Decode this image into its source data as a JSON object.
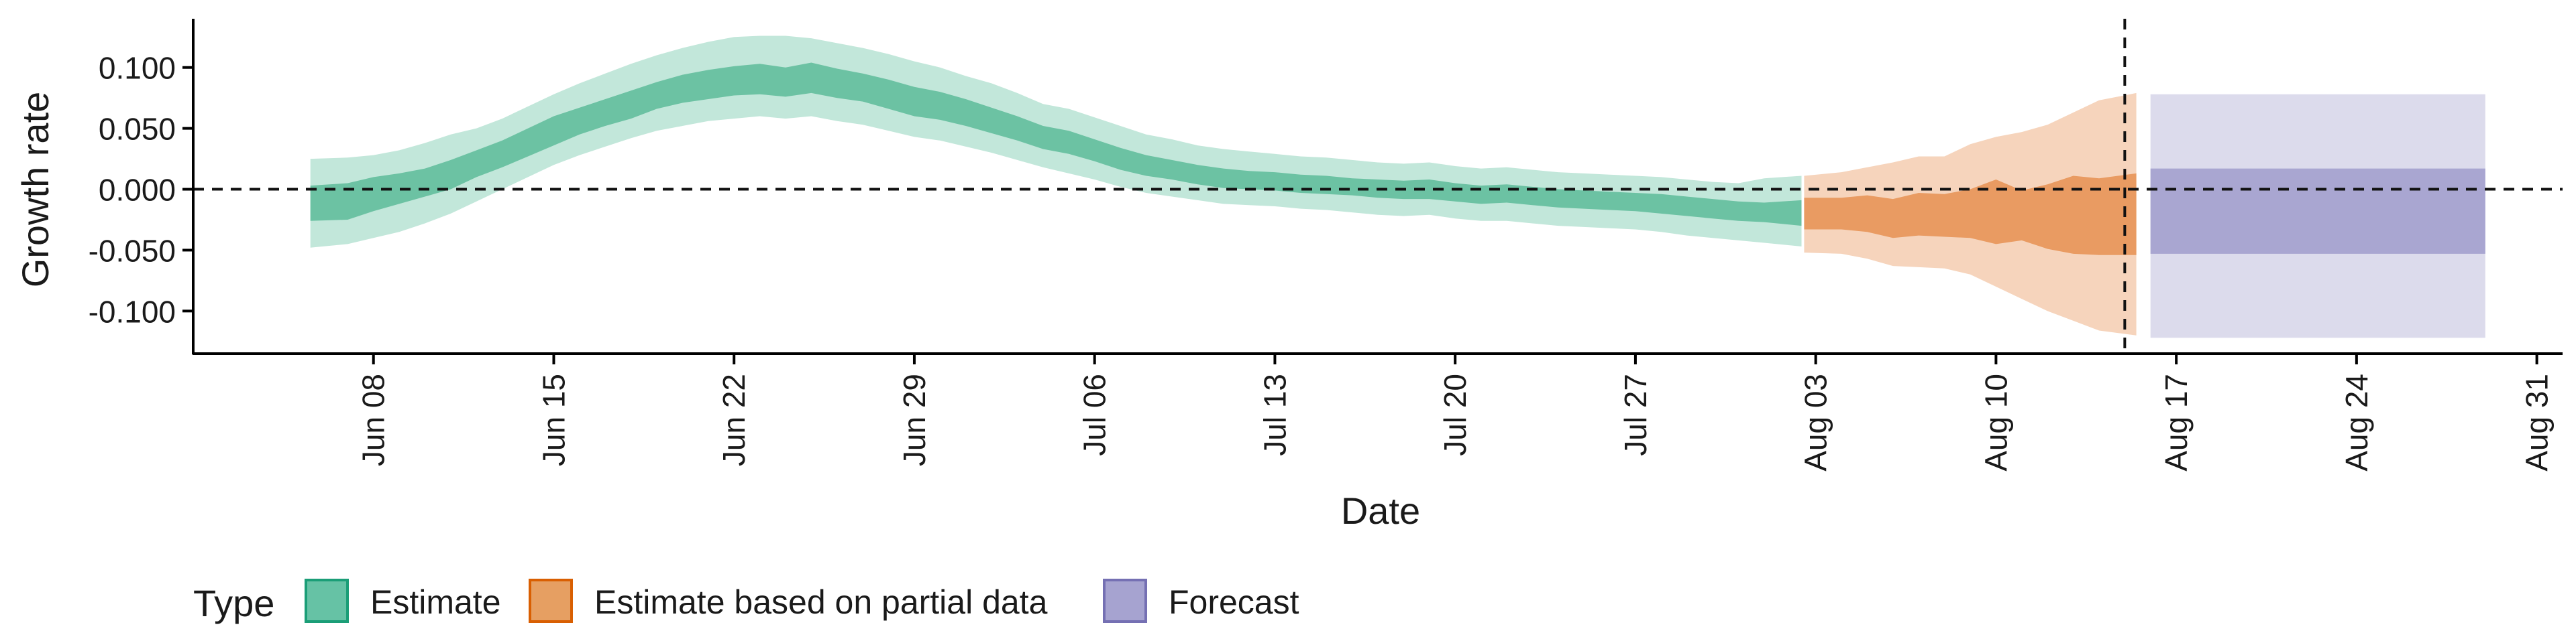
{
  "chart_data": {
    "type": "area",
    "xlabel": "Date",
    "ylabel": "Growth rate",
    "x_range": [
      "2020-06-01",
      "2020-09-01"
    ],
    "ylim": [
      -0.135,
      0.14
    ],
    "y_ticks": [
      {
        "value": 0.1,
        "label": "0.100"
      },
      {
        "value": 0.05,
        "label": "0.050"
      },
      {
        "value": 0.0,
        "label": "0.000"
      },
      {
        "value": -0.05,
        "label": "-0.050"
      },
      {
        "value": -0.1,
        "label": "-0.100"
      }
    ],
    "x_ticks": [
      {
        "date": "2020-06-08",
        "label": "Jun 08"
      },
      {
        "date": "2020-06-15",
        "label": "Jun 15"
      },
      {
        "date": "2020-06-22",
        "label": "Jun 22"
      },
      {
        "date": "2020-06-29",
        "label": "Jun 29"
      },
      {
        "date": "2020-07-06",
        "label": "Jul 06"
      },
      {
        "date": "2020-07-13",
        "label": "Jul 13"
      },
      {
        "date": "2020-07-20",
        "label": "Jul 20"
      },
      {
        "date": "2020-07-27",
        "label": "Jul 27"
      },
      {
        "date": "2020-08-03",
        "label": "Aug 03"
      },
      {
        "date": "2020-08-10",
        "label": "Aug 10"
      },
      {
        "date": "2020-08-17",
        "label": "Aug 17"
      },
      {
        "date": "2020-08-24",
        "label": "Aug 24"
      },
      {
        "date": "2020-08-31",
        "label": "Aug 31"
      }
    ],
    "reference_lines": {
      "horizontal_y": 0.0,
      "vertical_date": "2020-08-15"
    },
    "grid": false,
    "legend": {
      "title": "Type",
      "position": "bottom-left",
      "entries": [
        {
          "label": "Estimate",
          "fill": "#66c2a5",
          "stroke": "#1b9e77"
        },
        {
          "label": "Estimate based on partial data",
          "fill": "#e69f62",
          "stroke": "#d95f02"
        },
        {
          "label": "Forecast",
          "fill": "#a6a3d0",
          "stroke": "#7570b3"
        }
      ]
    },
    "series": [
      {
        "name": "Estimate",
        "inner_color": "#6cc2a3",
        "outer_color": "#c2e7da",
        "points": [
          {
            "date": "2020-06-06",
            "lo90": -0.048,
            "lo50": -0.026,
            "hi50": 0.003,
            "hi90": 0.025
          },
          {
            "date": "2020-06-07",
            "lo90": -0.045,
            "lo50": -0.025,
            "hi50": 0.005,
            "hi90": 0.026
          },
          {
            "date": "2020-06-08",
            "lo90": -0.04,
            "lo50": -0.018,
            "hi50": 0.01,
            "hi90": 0.028
          },
          {
            "date": "2020-06-09",
            "lo90": -0.035,
            "lo50": -0.012,
            "hi50": 0.013,
            "hi90": 0.032
          },
          {
            "date": "2020-06-10",
            "lo90": -0.028,
            "lo50": -0.006,
            "hi50": 0.017,
            "hi90": 0.038
          },
          {
            "date": "2020-06-11",
            "lo90": -0.02,
            "lo50": 0.0,
            "hi50": 0.024,
            "hi90": 0.045
          },
          {
            "date": "2020-06-12",
            "lo90": -0.01,
            "lo50": 0.01,
            "hi50": 0.032,
            "hi90": 0.05
          },
          {
            "date": "2020-06-13",
            "lo90": 0.0,
            "lo50": 0.018,
            "hi50": 0.04,
            "hi90": 0.058
          },
          {
            "date": "2020-06-14",
            "lo90": 0.01,
            "lo50": 0.027,
            "hi50": 0.05,
            "hi90": 0.068
          },
          {
            "date": "2020-06-15",
            "lo90": 0.02,
            "lo50": 0.036,
            "hi50": 0.06,
            "hi90": 0.078
          },
          {
            "date": "2020-06-16",
            "lo90": 0.028,
            "lo50": 0.045,
            "hi50": 0.067,
            "hi90": 0.087
          },
          {
            "date": "2020-06-17",
            "lo90": 0.035,
            "lo50": 0.052,
            "hi50": 0.074,
            "hi90": 0.095
          },
          {
            "date": "2020-06-18",
            "lo90": 0.042,
            "lo50": 0.058,
            "hi50": 0.081,
            "hi90": 0.103
          },
          {
            "date": "2020-06-19",
            "lo90": 0.048,
            "lo50": 0.066,
            "hi50": 0.088,
            "hi90": 0.11
          },
          {
            "date": "2020-06-20",
            "lo90": 0.052,
            "lo50": 0.071,
            "hi50": 0.094,
            "hi90": 0.116
          },
          {
            "date": "2020-06-21",
            "lo90": 0.056,
            "lo50": 0.074,
            "hi50": 0.098,
            "hi90": 0.121
          },
          {
            "date": "2020-06-22",
            "lo90": 0.058,
            "lo50": 0.077,
            "hi50": 0.101,
            "hi90": 0.125
          },
          {
            "date": "2020-06-23",
            "lo90": 0.06,
            "lo50": 0.078,
            "hi50": 0.103,
            "hi90": 0.126
          },
          {
            "date": "2020-06-24",
            "lo90": 0.058,
            "lo50": 0.076,
            "hi50": 0.1,
            "hi90": 0.126
          },
          {
            "date": "2020-06-25",
            "lo90": 0.06,
            "lo50": 0.079,
            "hi50": 0.104,
            "hi90": 0.124
          },
          {
            "date": "2020-06-26",
            "lo90": 0.056,
            "lo50": 0.075,
            "hi50": 0.099,
            "hi90": 0.12
          },
          {
            "date": "2020-06-27",
            "lo90": 0.053,
            "lo50": 0.072,
            "hi50": 0.095,
            "hi90": 0.116
          },
          {
            "date": "2020-06-28",
            "lo90": 0.048,
            "lo50": 0.066,
            "hi50": 0.09,
            "hi90": 0.111
          },
          {
            "date": "2020-06-29",
            "lo90": 0.043,
            "lo50": 0.06,
            "hi50": 0.084,
            "hi90": 0.105
          },
          {
            "date": "2020-06-30",
            "lo90": 0.04,
            "lo50": 0.057,
            "hi50": 0.08,
            "hi90": 0.1
          },
          {
            "date": "2020-07-01",
            "lo90": 0.035,
            "lo50": 0.052,
            "hi50": 0.074,
            "hi90": 0.093
          },
          {
            "date": "2020-07-02",
            "lo90": 0.03,
            "lo50": 0.046,
            "hi50": 0.067,
            "hi90": 0.087
          },
          {
            "date": "2020-07-03",
            "lo90": 0.024,
            "lo50": 0.04,
            "hi50": 0.06,
            "hi90": 0.079
          },
          {
            "date": "2020-07-04",
            "lo90": 0.018,
            "lo50": 0.033,
            "hi50": 0.052,
            "hi90": 0.07
          },
          {
            "date": "2020-07-05",
            "lo90": 0.013,
            "lo50": 0.029,
            "hi50": 0.048,
            "hi90": 0.066
          },
          {
            "date": "2020-07-06",
            "lo90": 0.008,
            "lo50": 0.023,
            "hi50": 0.041,
            "hi90": 0.059
          },
          {
            "date": "2020-07-07",
            "lo90": 0.002,
            "lo50": 0.016,
            "hi50": 0.034,
            "hi90": 0.052
          },
          {
            "date": "2020-07-08",
            "lo90": -0.003,
            "lo50": 0.011,
            "hi50": 0.028,
            "hi90": 0.045
          },
          {
            "date": "2020-07-09",
            "lo90": -0.006,
            "lo50": 0.008,
            "hi50": 0.024,
            "hi90": 0.041
          },
          {
            "date": "2020-07-10",
            "lo90": -0.009,
            "lo50": 0.004,
            "hi50": 0.02,
            "hi90": 0.036
          },
          {
            "date": "2020-07-11",
            "lo90": -0.012,
            "lo50": 0.001,
            "hi50": 0.017,
            "hi90": 0.033
          },
          {
            "date": "2020-07-12",
            "lo90": -0.013,
            "lo50": 0.0,
            "hi50": 0.015,
            "hi90": 0.031
          },
          {
            "date": "2020-07-13",
            "lo90": -0.014,
            "lo50": -0.001,
            "hi50": 0.014,
            "hi90": 0.029
          },
          {
            "date": "2020-07-14",
            "lo90": -0.016,
            "lo50": -0.003,
            "hi50": 0.012,
            "hi90": 0.027
          },
          {
            "date": "2020-07-15",
            "lo90": -0.017,
            "lo50": -0.004,
            "hi50": 0.011,
            "hi90": 0.026
          },
          {
            "date": "2020-07-16",
            "lo90": -0.019,
            "lo50": -0.005,
            "hi50": 0.009,
            "hi90": 0.024
          },
          {
            "date": "2020-07-17",
            "lo90": -0.021,
            "lo50": -0.007,
            "hi50": 0.008,
            "hi90": 0.022
          },
          {
            "date": "2020-07-18",
            "lo90": -0.022,
            "lo50": -0.008,
            "hi50": 0.007,
            "hi90": 0.021
          },
          {
            "date": "2020-07-19",
            "lo90": -0.021,
            "lo50": -0.008,
            "hi50": 0.008,
            "hi90": 0.022
          },
          {
            "date": "2020-07-20",
            "lo90": -0.024,
            "lo50": -0.01,
            "hi50": 0.005,
            "hi90": 0.019
          },
          {
            "date": "2020-07-21",
            "lo90": -0.026,
            "lo50": -0.012,
            "hi50": 0.003,
            "hi90": 0.017
          },
          {
            "date": "2020-07-22",
            "lo90": -0.026,
            "lo50": -0.011,
            "hi50": 0.004,
            "hi90": 0.018
          },
          {
            "date": "2020-07-23",
            "lo90": -0.028,
            "lo50": -0.013,
            "hi50": 0.002,
            "hi90": 0.016
          },
          {
            "date": "2020-07-24",
            "lo90": -0.03,
            "lo50": -0.015,
            "hi50": 0.0,
            "hi90": 0.014
          },
          {
            "date": "2020-07-25",
            "lo90": -0.031,
            "lo50": -0.016,
            "hi50": -0.001,
            "hi90": 0.013
          },
          {
            "date": "2020-07-26",
            "lo90": -0.032,
            "lo50": -0.017,
            "hi50": -0.002,
            "hi90": 0.012
          },
          {
            "date": "2020-07-27",
            "lo90": -0.033,
            "lo50": -0.018,
            "hi50": -0.003,
            "hi90": 0.011
          },
          {
            "date": "2020-07-28",
            "lo90": -0.035,
            "lo50": -0.02,
            "hi50": -0.004,
            "hi90": 0.01
          },
          {
            "date": "2020-07-29",
            "lo90": -0.038,
            "lo50": -0.022,
            "hi50": -0.006,
            "hi90": 0.008
          },
          {
            "date": "2020-07-30",
            "lo90": -0.04,
            "lo50": -0.024,
            "hi50": -0.008,
            "hi90": 0.006
          },
          {
            "date": "2020-07-31",
            "lo90": -0.042,
            "lo50": -0.026,
            "hi50": -0.01,
            "hi90": 0.005
          },
          {
            "date": "2020-08-01",
            "lo90": -0.044,
            "lo50": -0.027,
            "hi50": -0.011,
            "hi90": 0.009
          },
          {
            "date": "2020-08-02",
            "lo90": -0.047,
            "lo50": -0.03,
            "hi50": -0.009,
            "hi90": 0.011
          }
        ]
      },
      {
        "name": "Estimate based on partial data",
        "inner_color": "#e99b62",
        "outer_color": "#f6d4bc",
        "points": [
          {
            "date": "2020-08-03",
            "lo90": -0.052,
            "lo50": -0.033,
            "hi50": -0.007,
            "hi90": 0.011
          },
          {
            "date": "2020-08-04",
            "lo90": -0.053,
            "lo50": -0.033,
            "hi50": -0.007,
            "hi90": 0.014
          },
          {
            "date": "2020-08-05",
            "lo90": -0.057,
            "lo50": -0.035,
            "hi50": -0.005,
            "hi90": 0.018
          },
          {
            "date": "2020-08-06",
            "lo90": -0.063,
            "lo50": -0.04,
            "hi50": -0.008,
            "hi90": 0.022
          },
          {
            "date": "2020-08-07",
            "lo90": -0.064,
            "lo50": -0.038,
            "hi50": -0.003,
            "hi90": 0.027
          },
          {
            "date": "2020-08-08",
            "lo90": -0.065,
            "lo50": -0.039,
            "hi50": -0.004,
            "hi90": 0.027
          },
          {
            "date": "2020-08-09",
            "lo90": -0.07,
            "lo50": -0.04,
            "hi50": 0.0,
            "hi90": 0.037
          },
          {
            "date": "2020-08-10",
            "lo90": -0.08,
            "lo50": -0.045,
            "hi50": 0.008,
            "hi90": 0.043
          },
          {
            "date": "2020-08-11",
            "lo90": -0.09,
            "lo50": -0.042,
            "hi50": -0.001,
            "hi90": 0.047
          },
          {
            "date": "2020-08-12",
            "lo90": -0.1,
            "lo50": -0.049,
            "hi50": 0.004,
            "hi90": 0.053
          },
          {
            "date": "2020-08-13",
            "lo90": -0.108,
            "lo50": -0.053,
            "hi50": 0.011,
            "hi90": 0.063
          },
          {
            "date": "2020-08-14",
            "lo90": -0.116,
            "lo50": -0.054,
            "hi50": 0.009,
            "hi90": 0.073
          },
          {
            "date": "2020-08-15",
            "lo90": -0.12,
            "lo50": -0.054,
            "hi50": 0.013,
            "hi90": 0.079
          }
        ]
      },
      {
        "name": "Forecast",
        "inner_color": "#a9a6d1",
        "outer_color": "#dcdbec",
        "points": [
          {
            "date": "2020-08-16",
            "lo90": -0.122,
            "lo50": -0.053,
            "hi50": 0.017,
            "hi90": 0.078
          },
          {
            "date": "2020-08-29",
            "lo90": -0.122,
            "lo50": -0.053,
            "hi50": 0.017,
            "hi90": 0.078
          }
        ]
      }
    ]
  }
}
